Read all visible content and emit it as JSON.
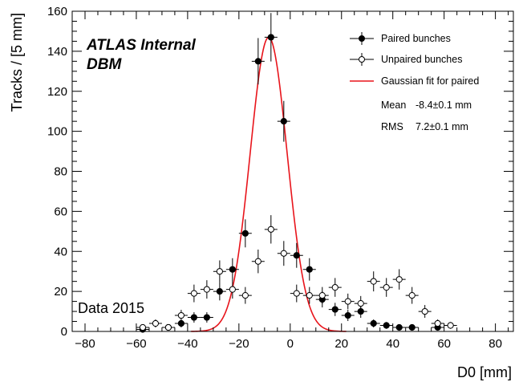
{
  "chart_data": {
    "type": "scatter",
    "xlabel": "D0 [mm]",
    "ylabel": "Tracks / [5 mm]",
    "xlim": [
      -85,
      87
    ],
    "ylim": [
      0,
      160
    ],
    "xticks": [
      -80,
      -60,
      -40,
      -20,
      0,
      20,
      40,
      60,
      80
    ],
    "yticks": [
      0,
      20,
      40,
      60,
      80,
      100,
      120,
      140,
      160
    ],
    "x_bin_width": 5,
    "grid": false,
    "legend_position": "top-right",
    "annotations": {
      "experiment": "ATLAS Internal",
      "detector": "DBM",
      "dataset": "Data 2015"
    },
    "series": [
      {
        "name": "Paired bunches",
        "marker": "filled-circle",
        "color": "#000000",
        "points": [
          {
            "x": -57.5,
            "y": 1,
            "err": 1
          },
          {
            "x": -47.5,
            "y": 2,
            "err": 1.4
          },
          {
            "x": -42.5,
            "y": 4,
            "err": 2
          },
          {
            "x": -37.5,
            "y": 7,
            "err": 2.6
          },
          {
            "x": -32.5,
            "y": 7,
            "err": 2.6
          },
          {
            "x": -27.5,
            "y": 20,
            "err": 4.5
          },
          {
            "x": -22.5,
            "y": 31,
            "err": 5.6
          },
          {
            "x": -17.5,
            "y": 49,
            "err": 7
          },
          {
            "x": -12.5,
            "y": 135,
            "err": 11.6
          },
          {
            "x": -7.5,
            "y": 147,
            "err": 12.1
          },
          {
            "x": -2.5,
            "y": 105,
            "err": 10.2
          },
          {
            "x": 2.5,
            "y": 38,
            "err": 6.2
          },
          {
            "x": 7.5,
            "y": 31,
            "err": 5.6
          },
          {
            "x": 12.5,
            "y": 16,
            "err": 4
          },
          {
            "x": 17.5,
            "y": 11,
            "err": 3.3
          },
          {
            "x": 22.5,
            "y": 8,
            "err": 2.8
          },
          {
            "x": 27.5,
            "y": 10,
            "err": 3.2
          },
          {
            "x": 32.5,
            "y": 4,
            "err": 2
          },
          {
            "x": 37.5,
            "y": 3,
            "err": 1.7
          },
          {
            "x": 42.5,
            "y": 2,
            "err": 1.4
          },
          {
            "x": 47.5,
            "y": 2,
            "err": 1.4
          },
          {
            "x": 57.5,
            "y": 2,
            "err": 1.4
          }
        ]
      },
      {
        "name": "Unpaired bunches",
        "marker": "open-circle",
        "color": "#000000",
        "points": [
          {
            "x": -57.5,
            "y": 2,
            "err": 1.4
          },
          {
            "x": -52.5,
            "y": 4,
            "err": 2
          },
          {
            "x": -47.5,
            "y": 2,
            "err": 1.4
          },
          {
            "x": -42.5,
            "y": 8,
            "err": 2.8
          },
          {
            "x": -37.5,
            "y": 19,
            "err": 4.4
          },
          {
            "x": -32.5,
            "y": 21,
            "err": 4.6
          },
          {
            "x": -27.5,
            "y": 30,
            "err": 5.5
          },
          {
            "x": -22.5,
            "y": 21,
            "err": 4.6
          },
          {
            "x": -17.5,
            "y": 18,
            "err": 4.2
          },
          {
            "x": -12.5,
            "y": 35,
            "err": 5.9
          },
          {
            "x": -7.5,
            "y": 51,
            "err": 7.1
          },
          {
            "x": -2.5,
            "y": 39,
            "err": 6.2
          },
          {
            "x": 2.5,
            "y": 19,
            "err": 4.4
          },
          {
            "x": 7.5,
            "y": 18,
            "err": 4.2
          },
          {
            "x": 12.5,
            "y": 18,
            "err": 4.2
          },
          {
            "x": 17.5,
            "y": 22,
            "err": 4.7
          },
          {
            "x": 22.5,
            "y": 15,
            "err": 3.9
          },
          {
            "x": 27.5,
            "y": 14,
            "err": 3.7
          },
          {
            "x": 32.5,
            "y": 25,
            "err": 5
          },
          {
            "x": 37.5,
            "y": 22,
            "err": 4.7
          },
          {
            "x": 42.5,
            "y": 26,
            "err": 5.1
          },
          {
            "x": 47.5,
            "y": 18,
            "err": 4.2
          },
          {
            "x": 52.5,
            "y": 10,
            "err": 3.2
          },
          {
            "x": 57.5,
            "y": 4,
            "err": 2
          },
          {
            "x": 62.5,
            "y": 3,
            "err": 1.7
          }
        ]
      },
      {
        "name": "Gaussian fit for paired",
        "type": "function",
        "color": "#e8141b",
        "function": "gaussian",
        "amplitude": 147,
        "mean": -8.4,
        "sigma": 7.2
      }
    ],
    "legend": {
      "items": [
        {
          "label": "Paired bunches",
          "marker": "filled-circle"
        },
        {
          "label": "Unpaired bunches",
          "marker": "open-circle"
        },
        {
          "label": "Gaussian fit for paired",
          "marker": "line"
        }
      ],
      "stats": [
        {
          "name": "Mean",
          "value": "-8.4±0.1 mm"
        },
        {
          "name": "RMS",
          "value": "7.2±0.1 mm"
        }
      ]
    }
  }
}
